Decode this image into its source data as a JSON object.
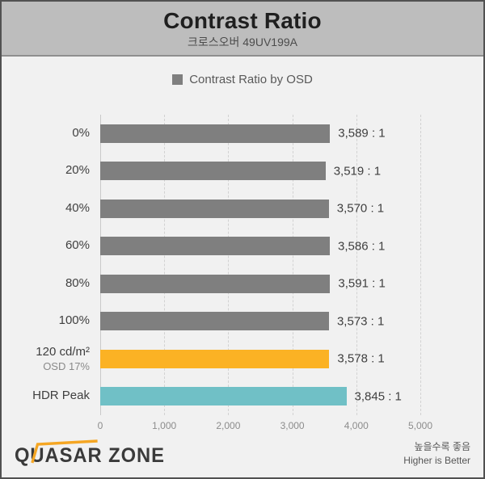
{
  "header": {
    "title": "Contrast Ratio",
    "subtitle": "크로스오버 49UV199A"
  },
  "legend": {
    "label": "Contrast Ratio by OSD",
    "marker_color": "#7f7f7f"
  },
  "chart_data": {
    "type": "bar",
    "orientation": "horizontal",
    "title": "Contrast Ratio",
    "subtitle": "크로스오버 49UV199A",
    "legend_position": "top",
    "grid": "vertical-dashed",
    "categories": [
      "0%",
      "20%",
      "40%",
      "60%",
      "80%",
      "100%",
      "120 cd/m²",
      "HDR Peak"
    ],
    "category_sublabels": [
      "",
      "",
      "",
      "",
      "",
      "",
      "OSD 17%",
      ""
    ],
    "values": [
      3589,
      3519,
      3570,
      3586,
      3591,
      3573,
      3578,
      3845
    ],
    "value_labels": [
      "3,589 : 1",
      "3,519 : 1",
      "3,570 : 1",
      "3,586 : 1",
      "3,591 : 1",
      "3,573 : 1",
      "3,578 : 1",
      "3,845 : 1"
    ],
    "bar_colors": [
      "#7f7f7f",
      "#7f7f7f",
      "#7f7f7f",
      "#7f7f7f",
      "#7f7f7f",
      "#7f7f7f",
      "#fbb224",
      "#70c0c6"
    ],
    "xlim": [
      0,
      5000
    ],
    "x_ticks": [
      "0",
      "1,000",
      "2,000",
      "3,000",
      "4,000",
      "5,000"
    ]
  },
  "footer": {
    "logo_text": "QUASAR ZONE",
    "note_ko": "높을수록 좋음",
    "note_en": "Higher is Better"
  },
  "colors": {
    "page_bg": "#f1f1f1",
    "header_bg": "#bdbdbd",
    "frame_border": "#515151",
    "bar_gray": "#7f7f7f",
    "bar_orange": "#fbb224",
    "bar_teal": "#70c0c6",
    "logo_accent": "#f5a623"
  }
}
